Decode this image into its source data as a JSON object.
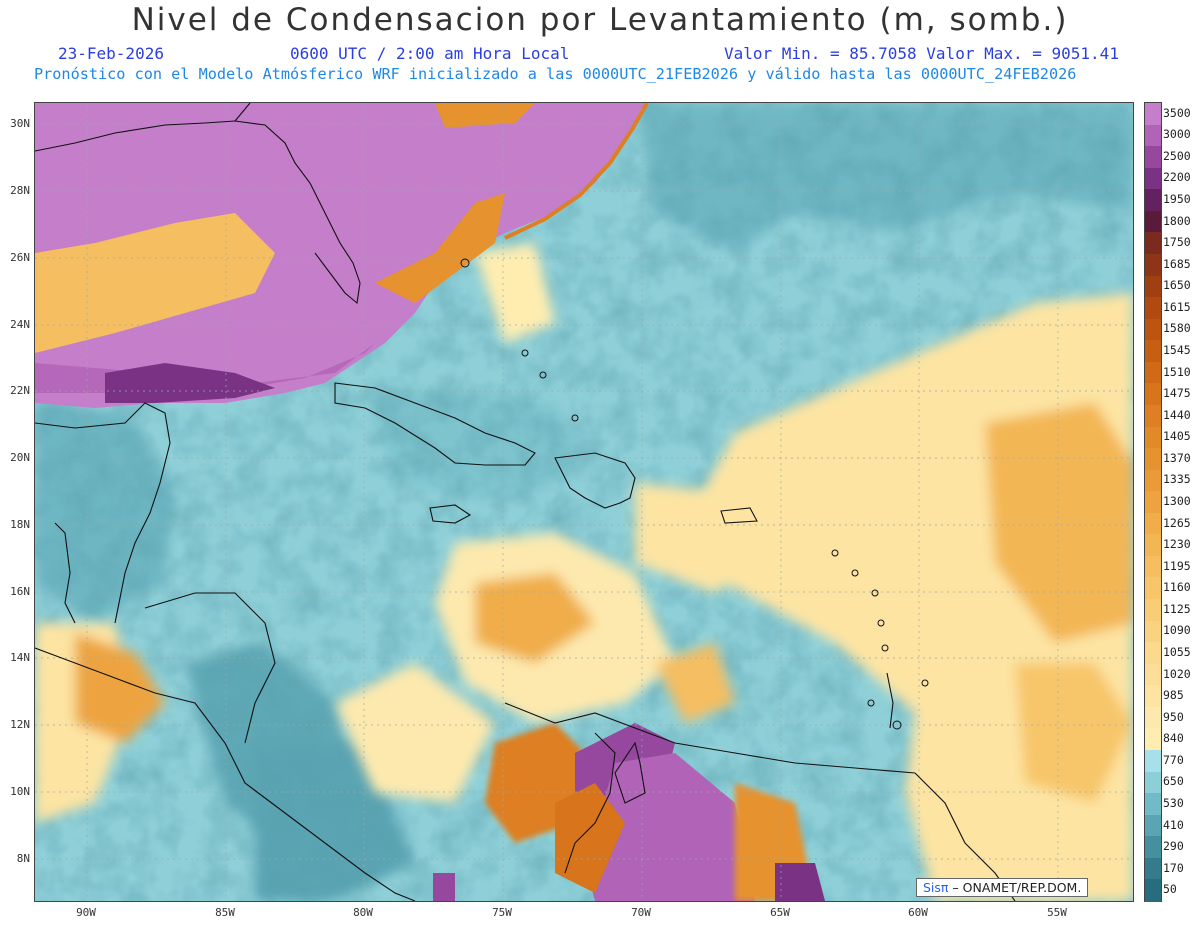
{
  "header": {
    "title": "Nivel de Condensacion por Levantamiento (m, somb.)",
    "date": "23-Feb-2026",
    "time": "0600 UTC / 2:00 am Hora Local",
    "min_max": "Valor Min. = 85.7058   Valor Max. = 9051.41",
    "description": "Pronóstico con el Modelo Atmósferico WRF inicializado a las 0000UTC_21FEB2026 y válido hasta las  0000UTC_24FEB2026"
  },
  "map": {
    "lat_labels": [
      "30N",
      "28N",
      "26N",
      "24N",
      "22N",
      "20N",
      "18N",
      "16N",
      "14N",
      "12N",
      "10N",
      "8N"
    ],
    "lon_labels": [
      "90W",
      "85W",
      "80W",
      "75W",
      "70W",
      "65W",
      "60W",
      "55W"
    ],
    "credit_brand": "Sis",
    "credit_pi": "π",
    "credit_text": "– ONAMET/REP.DOM."
  },
  "colorbar": {
    "labels": [
      "3500",
      "3000",
      "2500",
      "2200",
      "1950",
      "1800",
      "1750",
      "1685",
      "1650",
      "1615",
      "1580",
      "1545",
      "1510",
      "1475",
      "1440",
      "1405",
      "1370",
      "1335",
      "1300",
      "1265",
      "1230",
      "1195",
      "1160",
      "1125",
      "1090",
      "1055",
      "1020",
      "985",
      "950",
      "840",
      "770",
      "650",
      "530",
      "410",
      "290",
      "170",
      "50"
    ],
    "colors": [
      "#c57ec9",
      "#b063b7",
      "#95489e",
      "#7a3384",
      "#61225f",
      "#5a1a3a",
      "#7a2a1e",
      "#8e3518",
      "#a03f12",
      "#b04a10",
      "#bd5410",
      "#c75f12",
      "#d06a16",
      "#d7741c",
      "#dd7f22",
      "#e28928",
      "#e6922f",
      "#ea9b37",
      "#eda440",
      "#f0ad4a",
      "#f3b655",
      "#f5be60",
      "#f7c66b",
      "#f9cd76",
      "#fad382",
      "#fbd98d",
      "#fcde98",
      "#fde4a3",
      "#fde9ae",
      "#ffedb0",
      "#a6e0e8",
      "#8dcfd9",
      "#72bac7",
      "#5aa4b3",
      "#468f9f",
      "#357b8b",
      "#276d7d"
    ]
  }
}
